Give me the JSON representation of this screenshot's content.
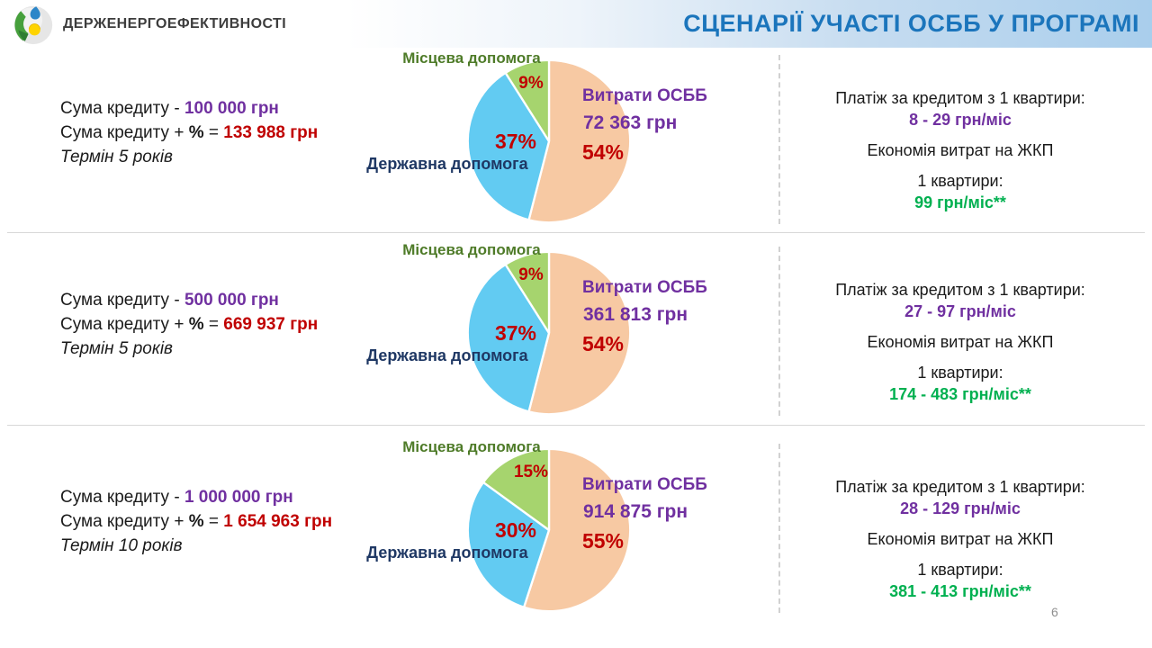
{
  "header": {
    "logo_text": "ДЕРЖЕНЕРГОЕФЕКТИВНОСТІ",
    "title": "СЦЕНАРІЇ УЧАСТІ ОСББ У ПРОГРАМІ"
  },
  "page_number": "6",
  "colors": {
    "title_blue": "#1B75BC",
    "purple": "#7030A0",
    "dark_red": "#C00000",
    "green_value": "#00B050",
    "local_aid_label": "#4E7B28",
    "state_aid_label": "#1F3864",
    "pie_peach": "#F7C9A3",
    "pie_blue": "#62CBF2",
    "pie_green": "#A6D46E"
  },
  "chart_data": [
    {
      "type": "pie",
      "start": "top",
      "direction": "clockwise",
      "slices": [
        {
          "label": "Витрати ОСББ",
          "value": 54,
          "display": "54%",
          "amount": "72 363 грн",
          "color": "#F7C9A3"
        },
        {
          "label": "Державна допомога",
          "value": 37,
          "display": "37%",
          "color": "#62CBF2"
        },
        {
          "label": "Місцева допомога",
          "value": 9,
          "display": "9%",
          "color": "#A6D46E"
        }
      ]
    },
    {
      "type": "pie",
      "start": "top",
      "direction": "clockwise",
      "slices": [
        {
          "label": "Витрати ОСББ",
          "value": 54,
          "display": "54%",
          "amount": "361 813 грн",
          "color": "#F7C9A3"
        },
        {
          "label": "Державна допомога",
          "value": 37,
          "display": "37%",
          "color": "#62CBF2"
        },
        {
          "label": "Місцева допомога",
          "value": 9,
          "display": "9%",
          "color": "#A6D46E"
        }
      ]
    },
    {
      "type": "pie",
      "start": "top",
      "direction": "clockwise",
      "slices": [
        {
          "label": "Витрати ОСББ",
          "value": 55,
          "display": "55%",
          "amount": "914 875 грн",
          "color": "#F7C9A3"
        },
        {
          "label": "Державна допомога",
          "value": 30,
          "display": "30%",
          "color": "#62CBF2"
        },
        {
          "label": "Місцева допомога",
          "value": 15,
          "display": "15%",
          "color": "#A6D46E"
        }
      ]
    }
  ],
  "rows": [
    {
      "left": {
        "line1_label": "Сума кредиту - ",
        "line1_value": "100 000 грн",
        "line2_label": "Сума кредиту + ",
        "line2_percent": "%",
        "line2_eq": " = ",
        "line2_value": "133 988 грн",
        "line3": "Термін 5 років"
      },
      "right": {
        "payment_label": "Платіж за кредитом з 1 квартири:",
        "payment_value": "8 - 29 грн/міс",
        "savings_label": "Економія витрат на ЖКП",
        "per_apartment_label": "1 квартири:",
        "savings_value": "99 грн/міс**"
      }
    },
    {
      "left": {
        "line1_label": "Сума кредиту - ",
        "line1_value": "500 000 грн",
        "line2_label": "Сума кредиту + ",
        "line2_percent": "%",
        "line2_eq": " = ",
        "line2_value": "669 937 грн",
        "line3": "Термін 5 років"
      },
      "right": {
        "payment_label": "Платіж за кредитом з 1 квартири:",
        "payment_value": "27 - 97 грн/міс",
        "savings_label": "Економія витрат на ЖКП",
        "per_apartment_label": "1 квартири:",
        "savings_value": "174 - 483 грн/міс**"
      }
    },
    {
      "left": {
        "line1_label": "Сума кредиту - ",
        "line1_value": "1 000 000 грн",
        "line2_label": "Сума кредиту + ",
        "line2_percent": "%",
        "line2_eq": " = ",
        "line2_value": "1 654 963 грн",
        "line3": "Термін 10 років"
      },
      "right": {
        "payment_label": "Платіж за кредитом з 1 квартири:",
        "payment_value": "28 - 129 грн/міс",
        "savings_label": "Економія витрат на ЖКП",
        "per_apartment_label": "1 квартири:",
        "savings_value": "381 - 413 грн/міс**"
      }
    }
  ]
}
